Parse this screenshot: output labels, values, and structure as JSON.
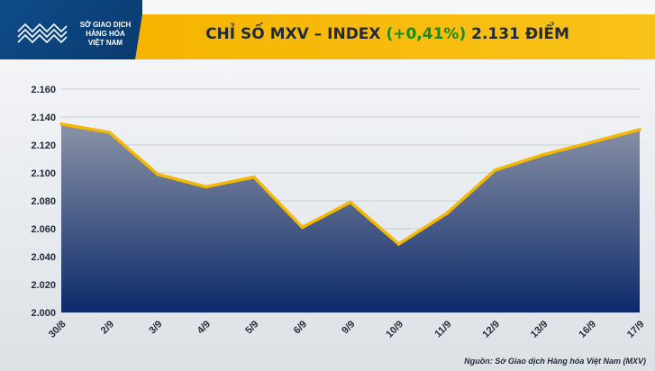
{
  "logo": {
    "line1": "SỞ GIAO DỊCH",
    "line2": "HÀNG HÓA",
    "line3": "VIỆT NAM",
    "icon": "mxv-logo-icon"
  },
  "header": {
    "title_prefix": "CHỈ SỐ MXV – INDEX ",
    "title_change": "(+0,41%)",
    "title_suffix": " 2.131 ĐIỂM"
  },
  "colors": {
    "title_band": "#f6b400",
    "logo_bg": "#0e4c8a",
    "line": "#f5b800",
    "area_top": "#8a93a6",
    "area_bottom": "#0d2a6b",
    "change_green": "#1a8c1a"
  },
  "chart_data": {
    "type": "area",
    "categories": [
      "30/8",
      "2/9",
      "3/9",
      "4/9",
      "5/9",
      "6/9",
      "9/9",
      "10/9",
      "11/9",
      "12/9",
      "13/9",
      "16/9",
      "17/9"
    ],
    "values": [
      2135,
      2129,
      2099,
      2090,
      2097,
      2061,
      2079,
      2049,
      2071,
      2102,
      2113,
      2122,
      2131
    ],
    "y_ticks": [
      "2.000",
      "2.020",
      "2.040",
      "2.060",
      "2.080",
      "2.100",
      "2.120",
      "2.140",
      "2.160"
    ],
    "ylim": [
      2000,
      2160
    ],
    "grid": true,
    "title": "CHỈ SỐ MXV – INDEX (+0,41%) 2.131 ĐIỂM"
  },
  "source": "Nguồn: Sở Giao dịch Hàng hóa Việt Nam (MXV)"
}
